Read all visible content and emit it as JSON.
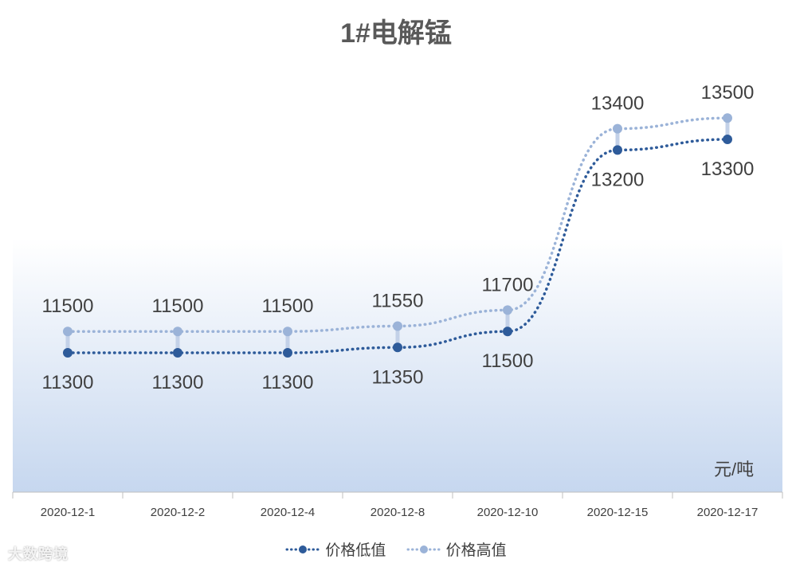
{
  "chart_data": {
    "type": "line",
    "title": "1#电解锰",
    "unit": "元/吨",
    "categories": [
      "2020-12-1",
      "2020-12-2",
      "2020-12-4",
      "2020-12-8",
      "2020-12-10",
      "2020-12-15",
      "2020-12-17"
    ],
    "series": [
      {
        "name": "价格低值",
        "values": [
          11300,
          11300,
          11300,
          11350,
          11500,
          13200,
          13300
        ],
        "color": "#2e5b9a"
      },
      {
        "name": "价格高值",
        "values": [
          11500,
          11500,
          11500,
          11550,
          11700,
          13400,
          13500
        ],
        "color": "#9bb3d8"
      }
    ],
    "legend_position": "bottom",
    "grid": false,
    "line_style": "dotted",
    "high_low_lines": true
  },
  "watermark": "大数跨境"
}
